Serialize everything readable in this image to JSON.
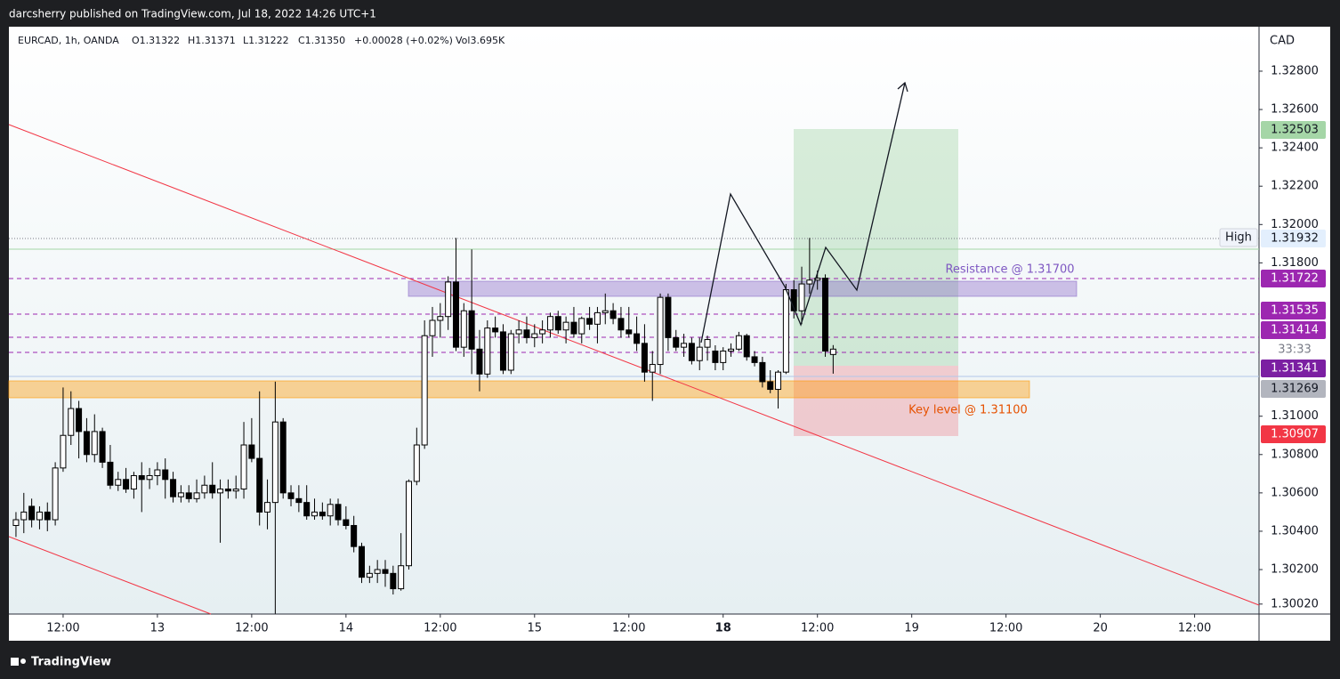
{
  "header": {
    "text": "darcsherry published on TradingView.com, Jul 18, 2022 14:26 UTC+1"
  },
  "footer": {
    "text": "TradingView"
  },
  "chart_data": {
    "type": "candlestick",
    "legend": [
      "EURCAD, 1h, OANDA",
      "O1.31322",
      "H1.31371",
      "L1.31222",
      "C1.31350",
      "+0.00028 (+0.02%)",
      "Vol3.695K"
    ],
    "currency": "CAD",
    "up_color": "#ffffff",
    "down_color": "#000000",
    "wick_color": "#000000",
    "open": [
      1.3043,
      1.3046,
      1.3053,
      1.3046,
      1.305,
      1.3046,
      1.3073,
      1.309,
      1.3104,
      1.3092,
      1.308,
      1.3092,
      1.3076,
      1.3064,
      1.3067,
      1.3062,
      1.3069,
      1.3067,
      1.3069,
      1.3072,
      1.3067,
      1.3058,
      1.306,
      1.3057,
      1.306,
      1.3064,
      1.306,
      1.3062,
      1.3061,
      1.3062,
      1.3085,
      1.3078,
      1.305,
      1.3055,
      1.3097,
      1.306,
      1.3057,
      1.3055,
      1.3048,
      1.305,
      1.3048,
      1.3054,
      1.3046,
      1.3043,
      1.3032,
      1.3016,
      1.3018,
      1.302,
      1.3018,
      1.301,
      1.3022,
      1.3066,
      1.3085,
      1.3142,
      1.315,
      1.3152,
      1.317,
      1.3136,
      1.3155,
      1.3135,
      1.3122,
      1.3146,
      1.3144,
      1.3124,
      1.3143,
      1.3145,
      1.3141,
      1.3143,
      1.3145,
      1.3152,
      1.3145,
      1.3149,
      1.3143,
      1.3151,
      1.3148,
      1.3154,
      1.3155,
      1.3151,
      1.3145,
      1.3143,
      1.3138,
      1.3123,
      1.3127,
      1.3162,
      1.3141,
      1.3136,
      1.3138,
      1.3129,
      1.3136,
      1.3134,
      1.3128,
      1.3134,
      1.3135,
      1.3142,
      1.3131,
      1.3128,
      1.3118,
      1.3114,
      1.3123,
      1.3166,
      1.3155,
      1.3169,
      1.3171,
      1.3172,
      1.31322
    ],
    "high": [
      1.305,
      1.306,
      1.3057,
      1.3053,
      1.3055,
      1.3076,
      1.3115,
      1.3113,
      1.3108,
      1.3099,
      1.3101,
      1.3094,
      1.3085,
      1.3071,
      1.3073,
      1.3071,
      1.3076,
      1.3073,
      1.3076,
      1.3078,
      1.3071,
      1.3064,
      1.3064,
      1.3067,
      1.3069,
      1.3076,
      1.3067,
      1.3067,
      1.3069,
      1.3097,
      1.3099,
      1.3113,
      1.3067,
      1.3118,
      1.3099,
      1.3064,
      1.3064,
      1.3064,
      1.3057,
      1.3055,
      1.3057,
      1.3057,
      1.3053,
      1.3048,
      1.3034,
      1.3022,
      1.3025,
      1.3025,
      1.3022,
      1.3039,
      1.3067,
      1.3094,
      1.315,
      1.3157,
      1.3159,
      1.3173,
      1.3193,
      1.3159,
      1.3187,
      1.3145,
      1.315,
      1.3152,
      1.3148,
      1.3145,
      1.315,
      1.3152,
      1.3148,
      1.315,
      1.3154,
      1.3155,
      1.3152,
      1.3157,
      1.3152,
      1.3157,
      1.3157,
      1.3164,
      1.3159,
      1.3157,
      1.3157,
      1.3152,
      1.3148,
      1.3134,
      1.3164,
      1.3164,
      1.3145,
      1.3143,
      1.3141,
      1.3141,
      1.3142,
      1.3137,
      1.3136,
      1.3138,
      1.3144,
      1.3143,
      1.3134,
      1.3131,
      1.3124,
      1.3124,
      1.3169,
      1.3171,
      1.3178,
      1.3193,
      1.3176,
      1.3174,
      1.31371
    ],
    "low": [
      1.3037,
      1.3039,
      1.3042,
      1.3041,
      1.304,
      1.3043,
      1.3071,
      1.3085,
      1.3078,
      1.3076,
      1.3076,
      1.3073,
      1.3062,
      1.3061,
      1.306,
      1.3057,
      1.305,
      1.3062,
      1.3064,
      1.3057,
      1.3055,
      1.3055,
      1.3055,
      1.3055,
      1.3057,
      1.3057,
      1.3034,
      1.3057,
      1.3057,
      1.3057,
      1.3076,
      1.3043,
      1.3041,
      1.2997,
      1.3057,
      1.3053,
      1.305,
      1.3046,
      1.3046,
      1.3046,
      1.3043,
      1.3043,
      1.3041,
      1.3029,
      1.3013,
      1.3013,
      1.3013,
      1.3011,
      1.3007,
      1.3009,
      1.302,
      1.3064,
      1.3083,
      1.3131,
      1.3141,
      1.3145,
      1.3134,
      1.3131,
      1.3122,
      1.3113,
      1.312,
      1.3141,
      1.3122,
      1.3122,
      1.3138,
      1.3138,
      1.3136,
      1.3138,
      1.3141,
      1.3143,
      1.3138,
      1.3141,
      1.3138,
      1.3145,
      1.3138,
      1.3148,
      1.3148,
      1.3141,
      1.3141,
      1.3134,
      1.3118,
      1.3108,
      1.3122,
      1.3134,
      1.3134,
      1.3131,
      1.3127,
      1.3124,
      1.3129,
      1.3124,
      1.3124,
      1.3131,
      1.3134,
      1.3129,
      1.3126,
      1.3115,
      1.3112,
      1.3104,
      1.3122,
      1.3151,
      1.3148,
      1.3164,
      1.3166,
      1.3131,
      1.31222
    ],
    "close": [
      1.3046,
      1.305,
      1.3046,
      1.305,
      1.3046,
      1.3073,
      1.309,
      1.3104,
      1.3092,
      1.308,
      1.3092,
      1.3076,
      1.3064,
      1.3067,
      1.3062,
      1.3069,
      1.3067,
      1.3069,
      1.3072,
      1.3067,
      1.3058,
      1.306,
      1.3057,
      1.306,
      1.3064,
      1.306,
      1.3062,
      1.3061,
      1.3062,
      1.3085,
      1.3078,
      1.305,
      1.3055,
      1.3097,
      1.306,
      1.3057,
      1.3055,
      1.3048,
      1.305,
      1.3048,
      1.3054,
      1.3046,
      1.3043,
      1.3032,
      1.3016,
      1.3018,
      1.302,
      1.3018,
      1.301,
      1.3022,
      1.3066,
      1.3085,
      1.3142,
      1.315,
      1.3152,
      1.317,
      1.3136,
      1.3155,
      1.3135,
      1.3122,
      1.3146,
      1.3144,
      1.3124,
      1.3143,
      1.3145,
      1.3141,
      1.3143,
      1.3145,
      1.3152,
      1.3145,
      1.3149,
      1.3143,
      1.3151,
      1.3148,
      1.3154,
      1.3155,
      1.3151,
      1.3145,
      1.3143,
      1.3138,
      1.3123,
      1.3127,
      1.3162,
      1.3141,
      1.3136,
      1.3138,
      1.3129,
      1.3136,
      1.314,
      1.3128,
      1.3134,
      1.3135,
      1.3142,
      1.3131,
      1.3128,
      1.3118,
      1.3114,
      1.3123,
      1.3166,
      1.3155,
      1.3169,
      1.3171,
      1.3172,
      1.3134,
      1.3135
    ],
    "xlim": [
      -0.9,
      158.2
    ],
    "xticks": [
      {
        "value": 6,
        "label": "12:00"
      },
      {
        "value": 18,
        "label": "13"
      },
      {
        "value": 30,
        "label": "12:00"
      },
      {
        "value": 42,
        "label": "14"
      },
      {
        "value": 54,
        "label": "12:00"
      },
      {
        "value": 66,
        "label": "15"
      },
      {
        "value": 78,
        "label": "12:00"
      },
      {
        "value": 90,
        "label": "18"
      },
      {
        "value": 102,
        "label": "12:00"
      },
      {
        "value": 114,
        "label": "19"
      },
      {
        "value": 126,
        "label": "12:00"
      },
      {
        "value": 138,
        "label": "20"
      },
      {
        "value": 150,
        "label": "12:00"
      }
    ],
    "ylim": [
      1.29968,
      1.33032
    ],
    "yticks": [
      {
        "value": 1.328,
        "label": "1.32800"
      },
      {
        "value": 1.326,
        "label": "1.32600"
      },
      {
        "value": 1.324,
        "label": "1.32400"
      },
      {
        "value": 1.322,
        "label": "1.32200"
      },
      {
        "value": 1.32,
        "label": "1.32000"
      },
      {
        "value": 1.318,
        "label": "1.31800"
      },
      {
        "value": 1.31,
        "label": "1.31000"
      },
      {
        "value": 1.308,
        "label": "1.30800"
      },
      {
        "value": 1.306,
        "label": "1.30600"
      },
      {
        "value": 1.304,
        "label": "1.30400"
      },
      {
        "value": 1.302,
        "label": "1.30200"
      },
      {
        "value": 1.3002,
        "label": "1.30020"
      }
    ],
    "annotations": [
      "Resistance @ 1.31700",
      "Key level @ 1.31100"
    ],
    "price_labels": [
      "1.32503",
      "High",
      "1.31932",
      "1.31722",
      "1.31535",
      "1.31414",
      "33:33",
      "1.31341",
      "1.31269",
      "1.30907"
    ]
  }
}
